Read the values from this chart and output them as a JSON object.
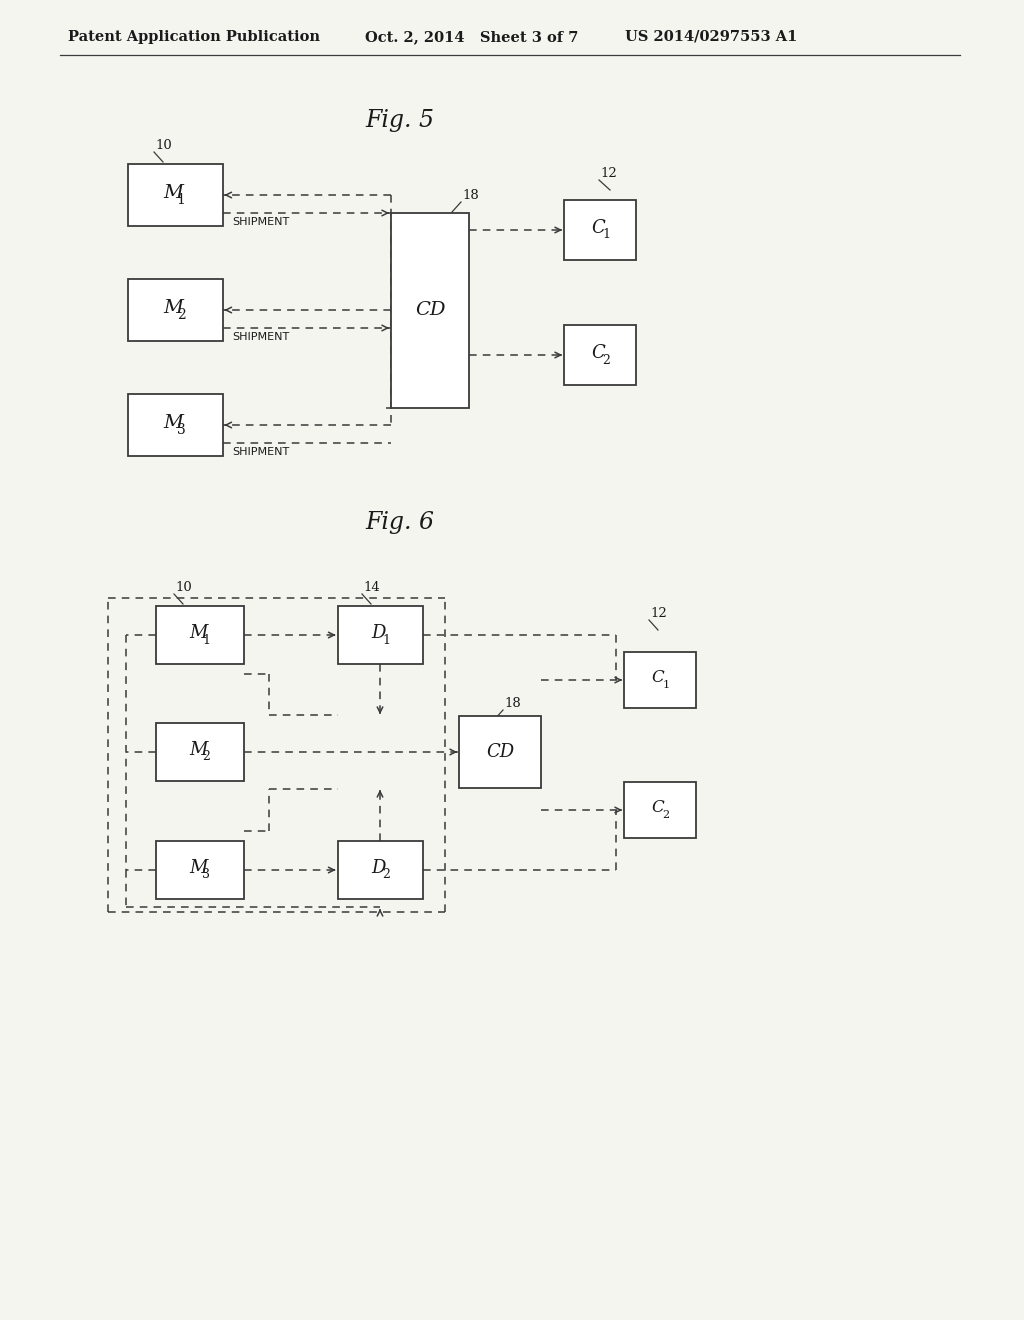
{
  "bg_color": "#f5f5f0",
  "header_left": "Patent Application Publication",
  "header_mid": "Oct. 2, 2014   Sheet 3 of 7",
  "header_right": "US 2014/0297553 A1",
  "fig5_title": "Fig. 5",
  "fig6_title": "Fig. 6",
  "lc": "#3a3a3a",
  "tc": "#1a1a1a",
  "bc": "#3a3a3a",
  "shipment_label": "SHIPMENT"
}
